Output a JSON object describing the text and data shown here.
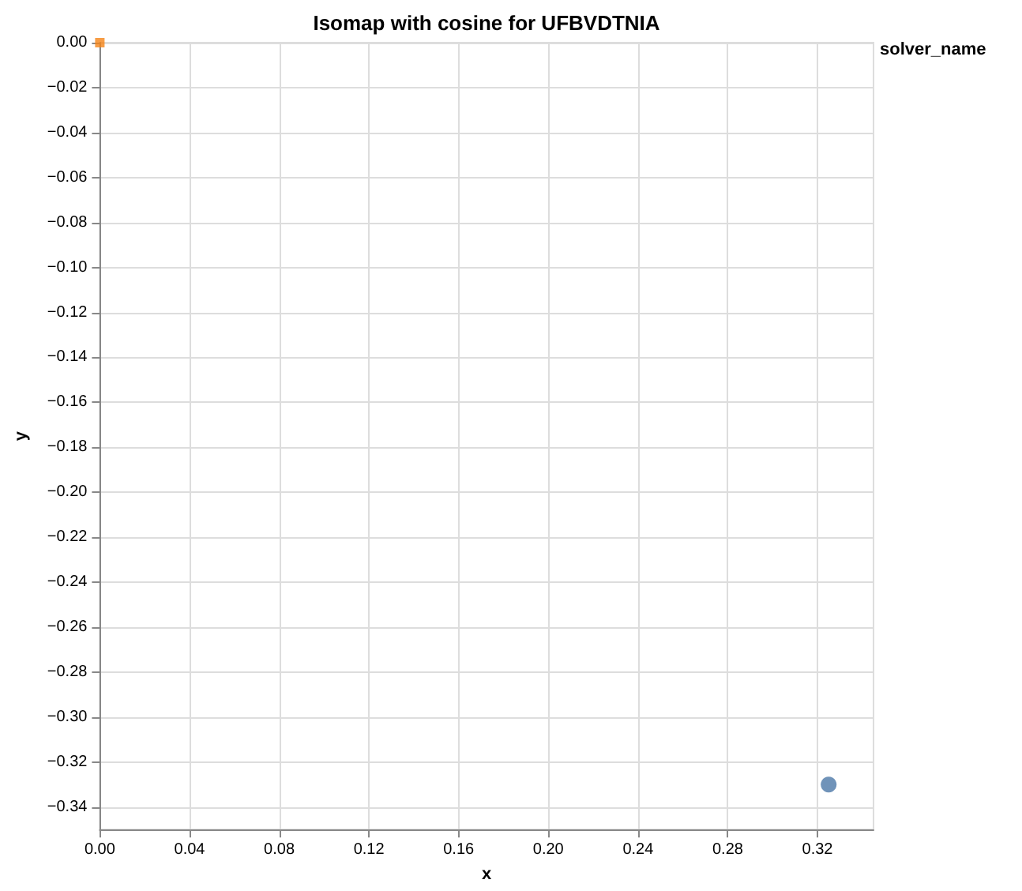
{
  "chart_data": {
    "type": "scatter",
    "title": "Isomap with cosine for UFBVDTNIA",
    "xlabel": "x",
    "ylabel": "y",
    "legend_title": "solver_name",
    "grid": true,
    "series": [
      {
        "color": "#4c78a8",
        "marker": "circle",
        "x": [
          0.325
        ],
        "values": [
          -0.33
        ]
      },
      {
        "color": "#f58518",
        "marker": "square",
        "x": [
          0.0
        ],
        "values": [
          0.0
        ]
      }
    ],
    "xlim": [
      0,
      0.345
    ],
    "ylim": [
      -0.35,
      0
    ],
    "xticks": [
      {
        "value": 0,
        "label": "0.00"
      },
      {
        "value": 0.04,
        "label": "0.04"
      },
      {
        "value": 0.08,
        "label": "0.08"
      },
      {
        "value": 0.12,
        "label": "0.12"
      },
      {
        "value": 0.16,
        "label": "0.16"
      },
      {
        "value": 0.2,
        "label": "0.20"
      },
      {
        "value": 0.24,
        "label": "0.24"
      },
      {
        "value": 0.28,
        "label": "0.28"
      },
      {
        "value": 0.32,
        "label": "0.32"
      }
    ],
    "yticks": [
      {
        "value": 0,
        "label": "0.00"
      },
      {
        "value": -0.02,
        "label": "−0.02"
      },
      {
        "value": -0.04,
        "label": "−0.04"
      },
      {
        "value": -0.06,
        "label": "−0.06"
      },
      {
        "value": -0.08,
        "label": "−0.08"
      },
      {
        "value": -0.1,
        "label": "−0.10"
      },
      {
        "value": -0.12,
        "label": "−0.12"
      },
      {
        "value": -0.14,
        "label": "−0.14"
      },
      {
        "value": -0.16,
        "label": "−0.16"
      },
      {
        "value": -0.18,
        "label": "−0.18"
      },
      {
        "value": -0.2,
        "label": "−0.20"
      },
      {
        "value": -0.22,
        "label": "−0.22"
      },
      {
        "value": -0.24,
        "label": "−0.24"
      },
      {
        "value": -0.26,
        "label": "−0.26"
      },
      {
        "value": -0.28,
        "label": "−0.28"
      },
      {
        "value": -0.3,
        "label": "−0.30"
      },
      {
        "value": -0.32,
        "label": "−0.32"
      },
      {
        "value": -0.34,
        "label": "−0.34"
      }
    ]
  }
}
